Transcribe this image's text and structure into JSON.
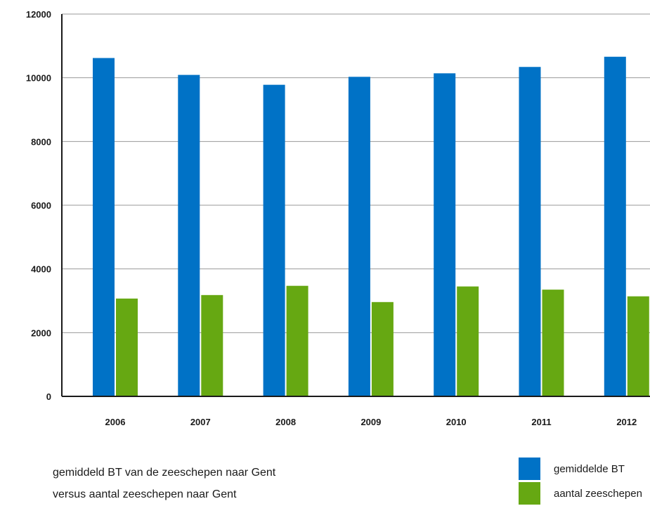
{
  "chart_data": {
    "type": "bar",
    "categories": [
      "2006",
      "2007",
      "2008",
      "2009",
      "2010",
      "2011",
      "2012"
    ],
    "series": [
      {
        "name": "gemiddelde BT",
        "color": "#0072c6",
        "values": [
          10620,
          10090,
          9780,
          10030,
          10140,
          10340,
          10660
        ]
      },
      {
        "name": "aantal zeeschepen",
        "color": "#66a812",
        "values": [
          3070,
          3180,
          3470,
          2960,
          3450,
          3350,
          3140
        ]
      }
    ],
    "yticks": [
      0,
      2000,
      4000,
      6000,
      8000,
      10000,
      12000
    ],
    "ylim": [
      0,
      12000
    ],
    "grid": true,
    "legend_position": "bottom-right"
  },
  "caption": {
    "line1": "gemiddeld BT van de zeeschepen naar Gent",
    "line2": "versus aantal zeeschepen naar Gent"
  }
}
